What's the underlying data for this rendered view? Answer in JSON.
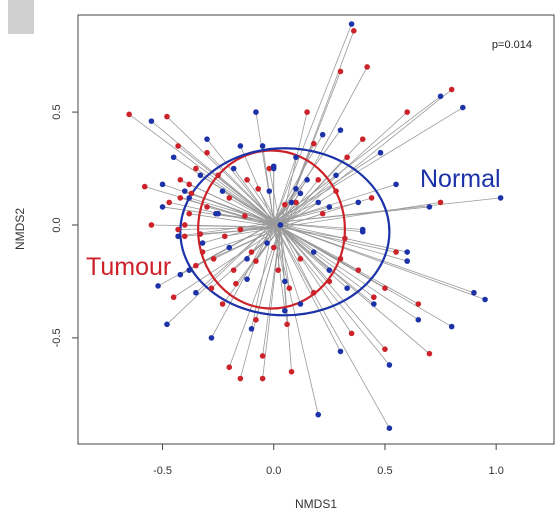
{
  "chart_data": {
    "type": "scatter",
    "xlabel": "NMDS1",
    "ylabel": "NMDS2",
    "xlim": [
      -0.88,
      1.26
    ],
    "ylim": [
      -0.97,
      0.93
    ],
    "xticks": [
      -0.5,
      0.0,
      0.5,
      1.0
    ],
    "xtick_labels": [
      "-0.5",
      "0.0",
      "0.5",
      "1.0"
    ],
    "yticks": [
      0.5,
      0.0,
      -0.5
    ],
    "ytick_labels": [
      "0.5",
      "0.0",
      "-0.5"
    ],
    "annotation": "p=0.014",
    "grid": false,
    "colors": {
      "Tumour": "#cc2229",
      "Normal": "#1c32a8",
      "spider": "#9a9a9a"
    },
    "series": [
      {
        "name": "Tumour",
        "label_text": "Tumour",
        "centroid": [
          0.03,
          -0.01
        ],
        "ellipse": {
          "cx": -0.01,
          "cy": -0.02,
          "rx": 0.33,
          "ry": 0.35
        },
        "x": [
          -0.65,
          -0.58,
          -0.55,
          -0.47,
          -0.43,
          -0.43,
          -0.42,
          -0.42,
          -0.4,
          -0.4,
          -0.38,
          -0.37,
          -0.35,
          -0.35,
          -0.32,
          -0.3,
          -0.3,
          -0.28,
          -0.27,
          -0.25,
          -0.23,
          -0.22,
          -0.2,
          -0.2,
          -0.18,
          -0.15,
          -0.15,
          -0.12,
          -0.1,
          -0.08,
          -0.07,
          -0.05,
          -0.05,
          -0.02,
          0.0,
          0.02,
          0.05,
          0.07,
          0.08,
          0.1,
          0.12,
          0.15,
          0.18,
          0.2,
          0.22,
          0.25,
          0.28,
          0.3,
          0.33,
          0.35,
          0.38,
          0.42,
          0.45,
          0.5,
          0.55,
          0.6,
          0.65,
          0.7,
          0.75,
          0.8,
          -0.48,
          -0.45,
          -0.38,
          -0.33,
          -0.17,
          -0.13,
          -0.08,
          0.06,
          0.18,
          0.3,
          0.32,
          0.36,
          0.4,
          0.44,
          0.5
        ],
        "y": [
          0.49,
          0.17,
          0.0,
          0.1,
          -0.02,
          0.35,
          0.2,
          0.12,
          0.0,
          -0.05,
          0.05,
          0.14,
          0.25,
          -0.18,
          -0.12,
          0.32,
          0.08,
          -0.28,
          -0.15,
          0.22,
          -0.35,
          -0.05,
          0.12,
          -0.63,
          -0.2,
          -0.02,
          -0.68,
          0.2,
          -0.12,
          -0.42,
          0.16,
          -0.58,
          -0.68,
          0.25,
          -0.1,
          -0.2,
          0.09,
          -0.28,
          -0.65,
          0.1,
          -0.15,
          0.5,
          -0.3,
          0.2,
          0.05,
          -0.25,
          0.15,
          -0.15,
          0.3,
          -0.48,
          -0.2,
          0.7,
          -0.32,
          -0.55,
          -0.12,
          0.5,
          -0.35,
          -0.57,
          0.1,
          0.6,
          0.48,
          -0.32,
          0.18,
          -0.04,
          -0.26,
          0.04,
          -0.16,
          -0.44,
          0.36,
          0.68,
          -0.06,
          0.86,
          0.38,
          0.12,
          -0.28
        ]
      },
      {
        "name": "Normal",
        "label_text": "Normal",
        "centroid": [
          0.0,
          0.01
        ],
        "ellipse": {
          "cx": 0.05,
          "cy": -0.03,
          "rx": 0.47,
          "ry": 0.37
        },
        "x": [
          -0.55,
          -0.52,
          -0.5,
          -0.5,
          -0.48,
          -0.45,
          -0.43,
          -0.42,
          -0.4,
          -0.38,
          -0.35,
          -0.33,
          -0.3,
          -0.28,
          -0.25,
          -0.23,
          -0.2,
          -0.18,
          -0.15,
          -0.12,
          -0.1,
          -0.08,
          -0.05,
          -0.03,
          -0.02,
          0.0,
          0.03,
          0.05,
          0.08,
          0.1,
          0.12,
          0.15,
          0.18,
          0.2,
          0.22,
          0.25,
          0.28,
          0.3,
          0.33,
          0.35,
          0.38,
          0.4,
          0.45,
          0.48,
          0.52,
          0.55,
          0.6,
          0.65,
          0.7,
          0.75,
          0.8,
          0.85,
          0.9,
          0.95,
          1.02,
          0.4,
          0.12,
          0.25,
          0.52,
          -0.32,
          -0.12,
          0.0,
          0.05,
          0.3,
          0.6,
          -0.38,
          -0.26,
          0.1,
          0.2
        ],
        "y": [
          0.46,
          -0.27,
          0.08,
          0.18,
          -0.44,
          0.3,
          -0.05,
          -0.22,
          0.15,
          0.12,
          -0.3,
          0.22,
          0.38,
          -0.5,
          0.05,
          0.15,
          -0.1,
          0.25,
          0.35,
          -0.15,
          -0.46,
          0.5,
          0.35,
          -0.08,
          0.15,
          0.25,
          0.0,
          -0.25,
          0.1,
          0.3,
          -0.35,
          0.2,
          -0.12,
          0.1,
          0.4,
          -0.2,
          0.22,
          0.42,
          -0.28,
          0.89,
          0.1,
          -0.03,
          -0.35,
          0.32,
          -0.62,
          0.18,
          -0.12,
          -0.42,
          0.08,
          0.57,
          -0.45,
          0.52,
          -0.3,
          -0.33,
          0.12,
          -0.02,
          0.14,
          0.08,
          -0.9,
          -0.08,
          -0.24,
          0.26,
          -0.38,
          -0.56,
          -0.16,
          -0.2,
          0.05,
          0.16,
          -0.84
        ]
      }
    ]
  }
}
